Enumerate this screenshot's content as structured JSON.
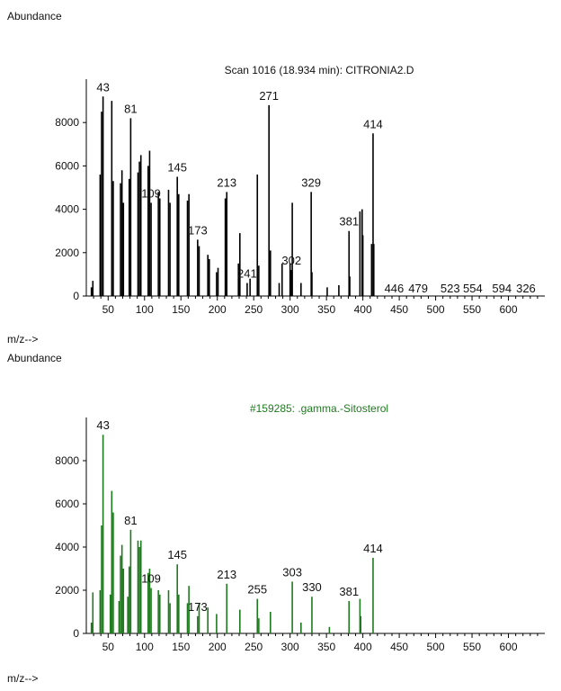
{
  "chart_data": [
    {
      "type": "bar",
      "subtype": "mass-spectrum",
      "title": "Scan 1016 (18.934 min): CITRONIA2.D",
      "ylabel": "Abundance",
      "xlabel": "m/z-->",
      "xlim": [
        20,
        650
      ],
      "ylim": [
        0,
        10000
      ],
      "x_ticks": [
        50,
        100,
        150,
        200,
        250,
        300,
        350,
        400,
        450,
        500,
        550,
        600
      ],
      "y_ticks": [
        0,
        2000,
        4000,
        6000,
        8000
      ],
      "bar_color": "#000000",
      "series": [
        {
          "name": "sample",
          "mz": [
            27,
            29,
            39,
            41,
            43,
            55,
            57,
            67,
            69,
            71,
            79,
            81,
            91,
            93,
            95,
            105,
            107,
            109,
            119,
            121,
            133,
            135,
            145,
            147,
            159,
            161,
            173,
            175,
            187,
            189,
            199,
            201,
            211,
            213,
            229,
            231,
            241,
            245,
            255,
            257,
            271,
            273,
            285,
            289,
            300,
            302,
            303,
            315,
            329,
            330,
            351,
            367,
            381,
            382,
            396,
            399,
            400,
            412,
            414,
            415
          ],
          "abundance": [
            400,
            700,
            5600,
            8500,
            9200,
            9000,
            5300,
            5200,
            5800,
            4300,
            5400,
            8200,
            5700,
            6200,
            6500,
            6000,
            6700,
            4300,
            4800,
            4500,
            4900,
            4300,
            5500,
            4700,
            4400,
            4700,
            2600,
            2300,
            1900,
            1700,
            1100,
            1300,
            4500,
            4800,
            1500,
            2900,
            600,
            800,
            5600,
            1400,
            8800,
            2100,
            600,
            1500,
            1500,
            1200,
            4300,
            600,
            4800,
            1100,
            400,
            500,
            3000,
            900,
            3900,
            4000,
            2800,
            2400,
            7500,
            2400
          ]
        }
      ],
      "peak_labels": [
        {
          "mz": 43,
          "text": "43"
        },
        {
          "mz": 81,
          "text": "81"
        },
        {
          "mz": 109,
          "text": "109"
        },
        {
          "mz": 145,
          "text": "145"
        },
        {
          "mz": 173,
          "text": "173"
        },
        {
          "mz": 213,
          "text": "213"
        },
        {
          "mz": 241,
          "text": "241"
        },
        {
          "mz": 271,
          "text": "271"
        },
        {
          "mz": 302,
          "text": "302"
        },
        {
          "mz": 329,
          "text": "329"
        },
        {
          "mz": 381,
          "text": "381"
        },
        {
          "mz": 414,
          "text": "414"
        }
      ],
      "tail_labels": [
        "446",
        "479",
        "523",
        "554",
        "594",
        "326"
      ]
    },
    {
      "type": "bar",
      "subtype": "mass-spectrum",
      "title": "#159285: .gamma.-Sitosterol",
      "ylabel": "Abundance",
      "xlabel": "m/z-->",
      "xlim": [
        20,
        650
      ],
      "ylim": [
        0,
        10000
      ],
      "x_ticks": [
        50,
        100,
        150,
        200,
        250,
        300,
        350,
        400,
        450,
        500,
        550,
        600
      ],
      "y_ticks": [
        0,
        2000,
        4000,
        6000,
        8000
      ],
      "bar_color": "#1f7a1f",
      "series": [
        {
          "name": "library",
          "mz": [
            27,
            29,
            39,
            41,
            43,
            53,
            55,
            57,
            65,
            67,
            69,
            71,
            77,
            79,
            81,
            91,
            93,
            95,
            105,
            107,
            109,
            119,
            121,
            133,
            135,
            145,
            147,
            159,
            161,
            173,
            175,
            187,
            199,
            213,
            231,
            255,
            257,
            273,
            303,
            315,
            330,
            354,
            381,
            396,
            397,
            414
          ],
          "abundance": [
            500,
            1900,
            2000,
            5000,
            9200,
            1800,
            6600,
            5600,
            1500,
            3600,
            4100,
            3000,
            1700,
            3100,
            4800,
            4300,
            4000,
            4300,
            2800,
            3000,
            2100,
            2000,
            1800,
            2000,
            1400,
            3200,
            1800,
            1400,
            2200,
            800,
            1400,
            1200,
            900,
            2300,
            1100,
            1600,
            700,
            1000,
            2400,
            500,
            1700,
            300,
            1500,
            1600,
            800,
            3500
          ]
        }
      ],
      "peak_labels": [
        {
          "mz": 43,
          "text": "43"
        },
        {
          "mz": 81,
          "text": "81"
        },
        {
          "mz": 109,
          "text": "109"
        },
        {
          "mz": 145,
          "text": "145"
        },
        {
          "mz": 173,
          "text": "173"
        },
        {
          "mz": 213,
          "text": "213"
        },
        {
          "mz": 255,
          "text": "255"
        },
        {
          "mz": 303,
          "text": "303"
        },
        {
          "mz": 330,
          "text": "330"
        },
        {
          "mz": 381,
          "text": "381"
        },
        {
          "mz": 414,
          "text": "414"
        }
      ]
    }
  ],
  "labels": {
    "abundance_top": "Abundance",
    "mz_top": "m/z-->",
    "abundance_bottom": "Abundance",
    "mz_bottom": "m/z-->"
  }
}
